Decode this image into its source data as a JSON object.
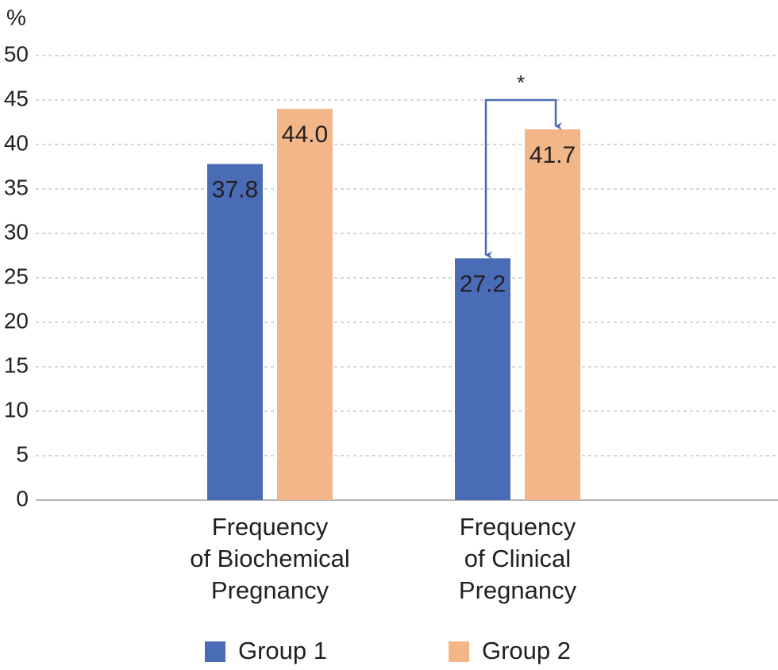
{
  "chart_data": {
    "type": "bar",
    "y_label": "%",
    "categories": [
      [
        "Frequency",
        "of Biochemical",
        "Pregnancy"
      ],
      [
        "Frequency",
        "of Clinical",
        "Pregnancy"
      ]
    ],
    "series": [
      {
        "name": "Group 1",
        "color": "#4a6bb5",
        "values": [
          37.8,
          27.2
        ],
        "value_labels": [
          "37.8",
          "27.2"
        ]
      },
      {
        "name": "Group 2",
        "color": "#f2b688",
        "values": [
          44.0,
          41.7
        ],
        "value_labels": [
          "44.0",
          "41.7"
        ]
      }
    ],
    "ylim": [
      0,
      50
    ],
    "yticks": [
      0,
      5,
      10,
      15,
      20,
      25,
      30,
      35,
      40,
      45,
      50
    ],
    "grid": true,
    "annotation": "*",
    "legend": "bottom"
  }
}
